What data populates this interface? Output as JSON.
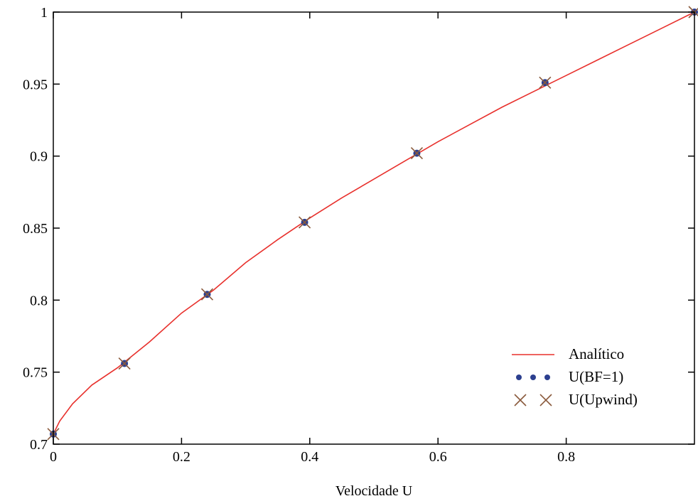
{
  "chart_data": {
    "type": "line",
    "title": "",
    "xlabel": "Velocidade U",
    "ylabel": "",
    "xlim": [
      0,
      1
    ],
    "ylim": [
      0.7,
      1
    ],
    "x_ticks": [
      "0",
      "0.2",
      "0.4",
      "0.6",
      "0.8"
    ],
    "x_tick_values": [
      0,
      0.2,
      0.4,
      0.6,
      0.8
    ],
    "y_ticks": [
      "0.7",
      "0.75",
      "0.8",
      "0.85",
      "0.9",
      "0.95",
      "1"
    ],
    "y_tick_values": [
      0.7,
      0.75,
      0.8,
      0.85,
      0.9,
      0.95,
      1
    ],
    "grid": false,
    "legend_position": "bottom-right",
    "colors": {
      "analitico": "#e8302c",
      "bf": "#2c3f8f",
      "upwind": "#8a5a3c"
    },
    "series": [
      {
        "name": "Analítico",
        "style": "line",
        "x": [
          0,
          0.01,
          0.03,
          0.06,
          0.1,
          0.15,
          0.2,
          0.25,
          0.3,
          0.35,
          0.4,
          0.45,
          0.5,
          0.55,
          0.6,
          0.65,
          0.7,
          0.75,
          0.8,
          0.85,
          0.9,
          0.95,
          1.0
        ],
        "y": [
          0.707,
          0.716,
          0.728,
          0.741,
          0.753,
          0.771,
          0.791,
          0.807,
          0.826,
          0.842,
          0.857,
          0.871,
          0.884,
          0.897,
          0.91,
          0.922,
          0.934,
          0.945,
          0.956,
          0.967,
          0.978,
          0.989,
          1.0
        ]
      },
      {
        "name": "U(BF=1)",
        "style": "dots",
        "x": [
          0,
          0.111,
          0.24,
          0.392,
          0.567,
          0.767,
          1.0
        ],
        "y": [
          0.707,
          0.756,
          0.804,
          0.854,
          0.902,
          0.951,
          1.0
        ]
      },
      {
        "name": "U(Upwind)",
        "style": "x",
        "x": [
          0,
          0.111,
          0.24,
          0.392,
          0.567,
          0.767,
          1.0
        ],
        "y": [
          0.707,
          0.756,
          0.804,
          0.854,
          0.902,
          0.951,
          1.0
        ]
      }
    ]
  }
}
